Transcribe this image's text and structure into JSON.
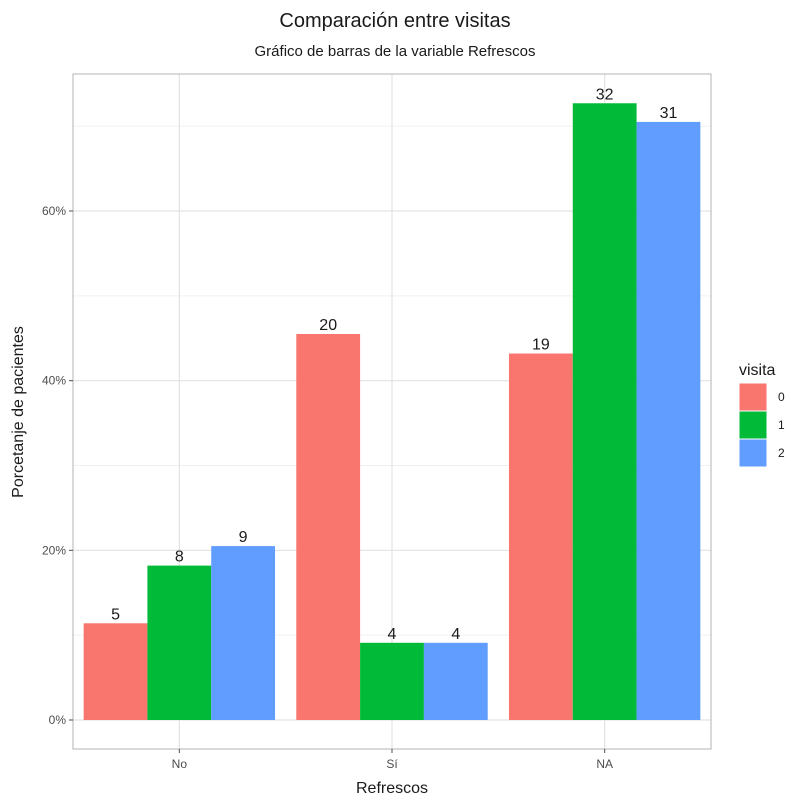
{
  "chart_data": {
    "type": "bar",
    "title": "Comparación entre visitas",
    "subtitle": "Gráfico de barras de la variable Refrescos",
    "xlabel": "Refrescos",
    "ylabel": "Porcetanje de pacientes",
    "categories": [
      "No",
      "Sí",
      "NA"
    ],
    "ylim": [
      0,
      0.75
    ],
    "yticks": [
      0,
      0.2,
      0.4,
      0.6
    ],
    "ytick_labels": [
      "0%",
      "20%",
      "40%",
      "60%"
    ],
    "grid": true,
    "legend": {
      "title": "visita",
      "position": "right"
    },
    "series": [
      {
        "name": "0",
        "color": "#F8766D",
        "values": [
          0.114,
          0.455,
          0.432
        ],
        "labels": [
          "5",
          "20",
          "19"
        ]
      },
      {
        "name": "1",
        "color": "#00BA38",
        "values": [
          0.182,
          0.091,
          0.727
        ],
        "labels": [
          "8",
          "4",
          "32"
        ]
      },
      {
        "name": "2",
        "color": "#619CFF",
        "values": [
          0.205,
          0.091,
          0.705
        ],
        "labels": [
          "9",
          "4",
          "31"
        ]
      }
    ]
  }
}
